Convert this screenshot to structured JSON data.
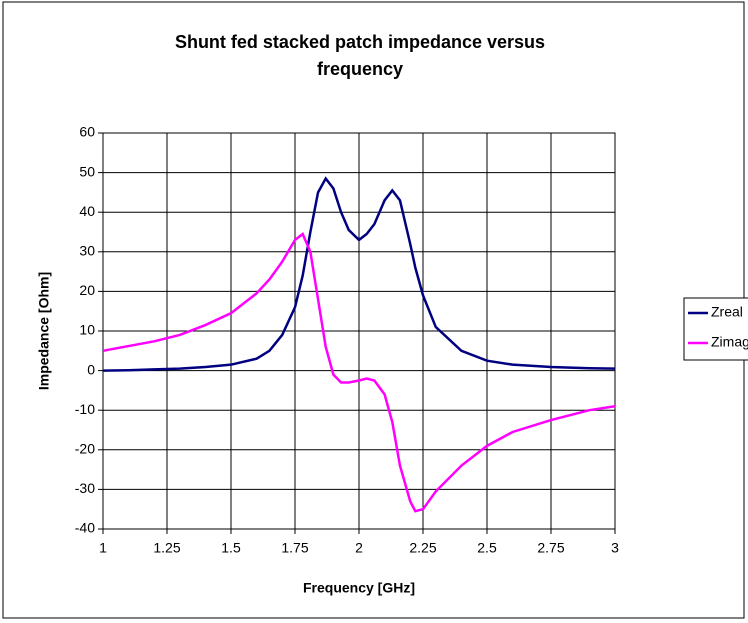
{
  "chart_data": {
    "type": "line",
    "title": [
      "Shunt fed stacked patch impedance versus",
      "frequency"
    ],
    "xlabel": "Frequency [GHz]",
    "ylabel": "Impedance [Ohm]",
    "x": [
      1,
      1.1,
      1.2,
      1.3,
      1.4,
      1.5,
      1.6,
      1.65,
      1.7,
      1.75,
      1.78,
      1.81,
      1.84,
      1.87,
      1.9,
      1.93,
      1.96,
      2.0,
      2.03,
      2.06,
      2.1,
      2.13,
      2.16,
      2.2,
      2.22,
      2.25,
      2.3,
      2.4,
      2.5,
      2.6,
      2.75,
      2.9,
      3
    ],
    "series": [
      {
        "name": "Zreal",
        "color": "#000080",
        "values": [
          0,
          0.1,
          0.3,
          0.5,
          0.9,
          1.5,
          3,
          5,
          9,
          16,
          24,
          35,
          45,
          48.5,
          46,
          40,
          35.5,
          33,
          34.5,
          37,
          43,
          45.5,
          43,
          32,
          26,
          19,
          11,
          5,
          2.5,
          1.5,
          0.9,
          0.6,
          0.5
        ]
      },
      {
        "name": "Zimag",
        "color": "#ff00ff",
        "values": [
          5,
          6.2,
          7.4,
          9,
          11.5,
          14.5,
          19.5,
          23,
          27.5,
          33,
          34.5,
          30,
          18,
          6,
          -1,
          -3,
          -3,
          -2.5,
          -2,
          -2.5,
          -6,
          -13,
          -24,
          -33,
          -35.5,
          -35,
          -30.5,
          -24,
          -19,
          -15.5,
          -12.5,
          -10,
          -9
        ]
      }
    ],
    "xlim": [
      1,
      3
    ],
    "xticks": [
      1,
      1.25,
      1.5,
      1.75,
      2,
      2.25,
      2.5,
      2.75,
      3
    ],
    "ylim": [
      -40,
      60
    ],
    "yticks": [
      -40,
      -30,
      -20,
      -10,
      0,
      10,
      20,
      30,
      40,
      50,
      60
    ],
    "grid": true,
    "legend": "right"
  }
}
